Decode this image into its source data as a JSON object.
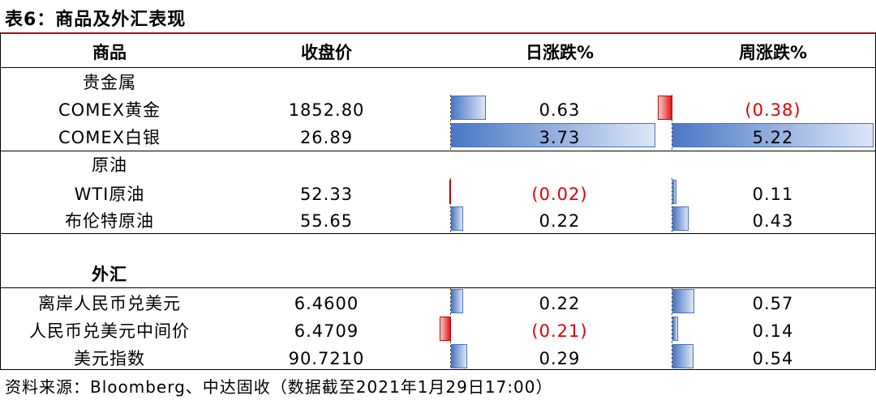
{
  "title": "表6：商品及外汇表现",
  "headers": {
    "name": "商品",
    "close": "收盘价",
    "day": "日涨跌%",
    "week": "周涨跌%"
  },
  "sections": [
    {
      "label": "贵金属",
      "rows": [
        {
          "name": "COMEX黄金",
          "close": "1852.80",
          "day": "0.63",
          "day_value": 0.63,
          "week": "(0.38)",
          "week_value": -0.38
        },
        {
          "name": "COMEX白银",
          "close": "26.89",
          "day": "3.73",
          "day_value": 3.73,
          "week": "5.22",
          "week_value": 5.22
        }
      ]
    },
    {
      "label": "原油",
      "rows": [
        {
          "name": "WTI原油",
          "close": "52.33",
          "day": "(0.02)",
          "day_value": -0.02,
          "week": "0.11",
          "week_value": 0.11
        },
        {
          "name": "布伦特原油",
          "close": "55.65",
          "day": "0.22",
          "day_value": 0.22,
          "week": "0.43",
          "week_value": 0.43
        }
      ]
    },
    {
      "label": "外汇",
      "rows": [
        {
          "name": "离岸人民币兑美元",
          "close": "6.4600",
          "day": "0.22",
          "day_value": 0.22,
          "week": "0.57",
          "week_value": 0.57
        },
        {
          "name": "人民币兑美元中间价",
          "close": "6.4709",
          "day": "(0.21)",
          "day_value": -0.21,
          "week": "0.14",
          "week_value": 0.14
        },
        {
          "name": "美元指数",
          "close": "90.7210",
          "day": "0.29",
          "day_value": 0.29,
          "week": "0.54",
          "week_value": 0.54
        }
      ]
    }
  ],
  "source": "资料来源：Bloomberg、中达固收（数据截至2021年1月29日17:00）",
  "colors": {
    "title_rule": "#c00000",
    "positive_bar": "#4a78c4",
    "negative_bar": "#e01515",
    "negative_text": "#e00000"
  }
}
